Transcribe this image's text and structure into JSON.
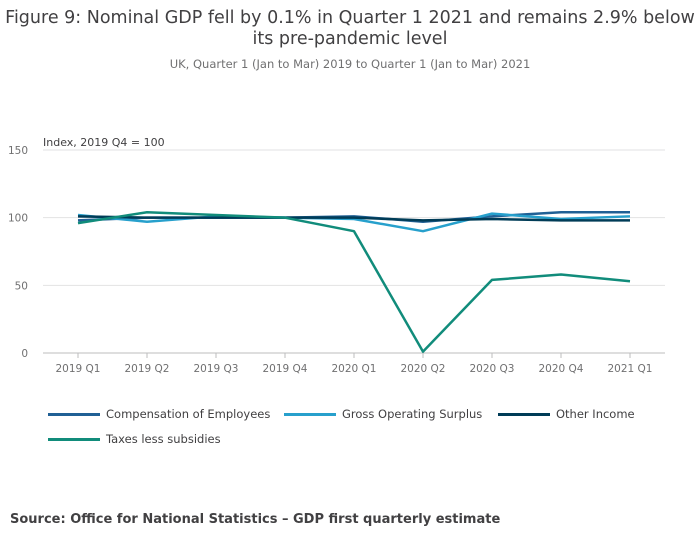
{
  "title": "Figure 9: Nominal GDP fell by 0.1% in Quarter 1 2021 and remains 2.9% below its pre-pandemic level",
  "subtitle": "UK, Quarter 1 (Jan to Mar) 2019 to Quarter 1 (Jan to Mar) 2021",
  "source": "Source: Office for National Statistics – GDP first quarterly estimate",
  "chart_data": {
    "type": "line",
    "ylabel": "Index, 2019 Q4 = 100",
    "xlabel": "",
    "ylim": [
      0,
      150
    ],
    "yticks": [
      0,
      50,
      100,
      150
    ],
    "categories": [
      "2019 Q1",
      "2019 Q2",
      "2019 Q3",
      "2019 Q4",
      "2020 Q1",
      "2020 Q2",
      "2020 Q3",
      "2020 Q4",
      "2021 Q1"
    ],
    "grid": true,
    "legend_position": "bottom",
    "series": [
      {
        "name": "Compensation of Employees",
        "color": "#206095",
        "values": [
          98,
          100,
          100,
          100,
          101,
          97,
          101,
          104,
          104
        ]
      },
      {
        "name": "Gross Operating Surplus",
        "color": "#27a0cc",
        "values": [
          102,
          97,
          101,
          100,
          99,
          90,
          103,
          99,
          101
        ]
      },
      {
        "name": "Other Income",
        "color": "#003c57",
        "values": [
          101,
          100,
          100,
          100,
          100,
          98,
          99,
          98,
          98
        ]
      },
      {
        "name": "Taxes less subsidies",
        "color": "#118c7b",
        "values": [
          96,
          104,
          102,
          100,
          90,
          1,
          54,
          58,
          53
        ]
      }
    ]
  }
}
